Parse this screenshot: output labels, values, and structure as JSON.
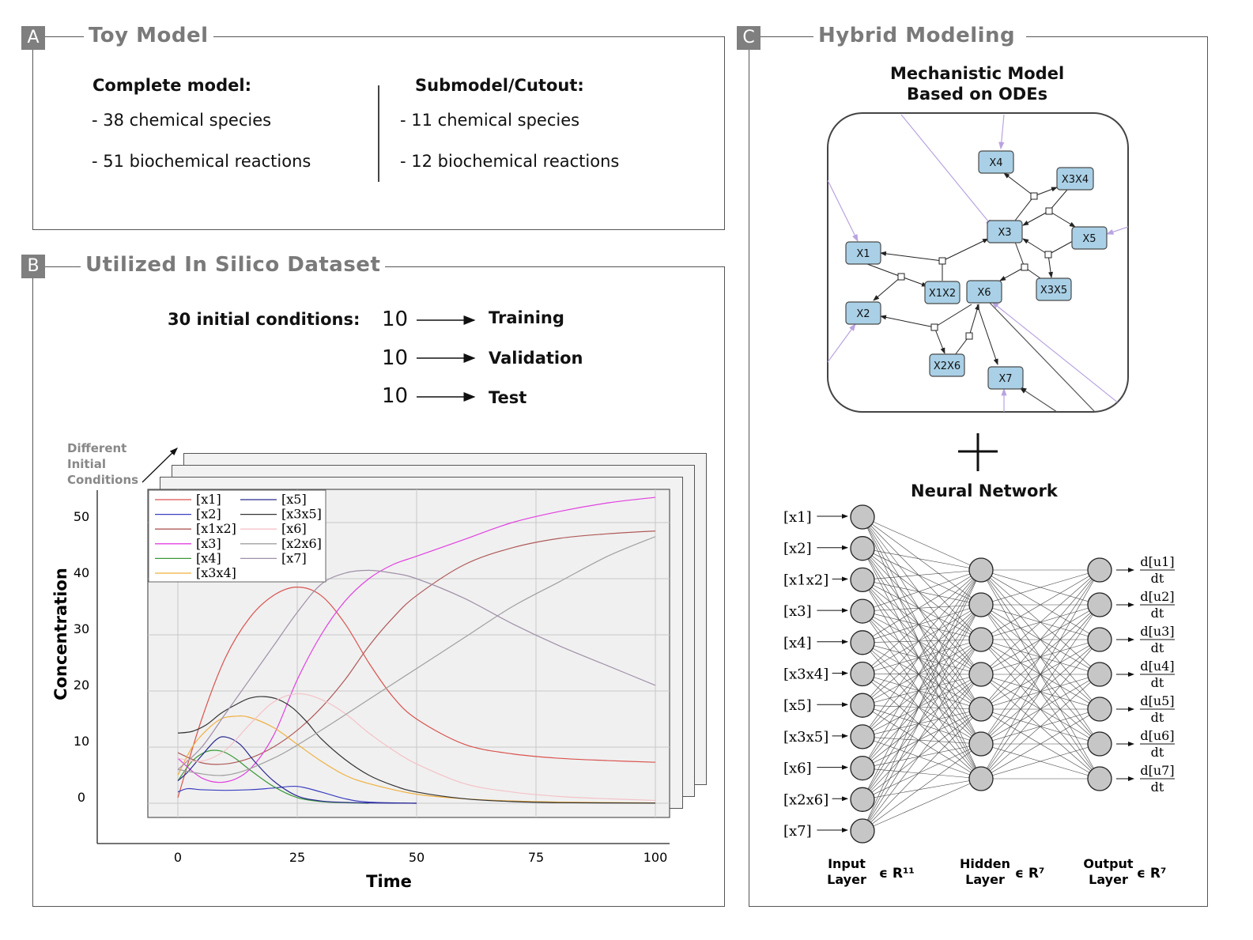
{
  "panel_a": {
    "tag": "A",
    "title": "Toy Model",
    "complete": {
      "heading": "Complete model:",
      "species": "- 38 chemical species",
      "reactions": "- 51 biochemical reactions"
    },
    "submodel": {
      "heading": "Submodel/Cutout:",
      "species": "- 11 chemical species",
      "reactions": "- 12 biochemical reactions"
    }
  },
  "panel_b": {
    "tag": "B",
    "title": "Utilized In Silico Dataset",
    "conditions_label": "30 initial conditions:",
    "splits": [
      {
        "count": "10",
        "label": "Training"
      },
      {
        "count": "10",
        "label": "Validation"
      },
      {
        "count": "10",
        "label": "Test"
      }
    ],
    "stack_label": [
      "Different",
      "Initial",
      "Conditions"
    ]
  },
  "chart_data": {
    "type": "line",
    "xlabel": "Time",
    "ylabel": "Concentration",
    "xlim": [
      0,
      100
    ],
    "ylim": [
      -7,
      56
    ],
    "xticks": [
      0,
      25,
      50,
      75,
      100
    ],
    "yticks": [
      0,
      10,
      20,
      30,
      40,
      50
    ],
    "grid": true,
    "legend_position": "top-left",
    "series": [
      {
        "name": "[x1]",
        "color": "#d9534f",
        "x": [
          0,
          5,
          10,
          15,
          20,
          25,
          30,
          35,
          40,
          45,
          50,
          60,
          70,
          80,
          90,
          100
        ],
        "y": [
          1,
          15,
          26,
          33,
          37,
          38.5,
          37,
          32,
          25,
          19,
          15,
          10.5,
          8.8,
          8,
          7.6,
          7.3
        ]
      },
      {
        "name": "[x2]",
        "color": "#3b3fbf",
        "x": [
          0,
          2,
          5,
          10,
          15,
          20,
          25,
          30,
          35,
          40,
          50
        ],
        "y": [
          2,
          2.6,
          2.4,
          2.3,
          2.4,
          2.7,
          3,
          2,
          0.8,
          0.2,
          0
        ]
      },
      {
        "name": "[x1x2]",
        "color": "#b05a5a",
        "x": [
          0,
          5,
          10,
          15,
          20,
          25,
          30,
          35,
          40,
          45,
          50,
          60,
          70,
          80,
          90,
          100
        ],
        "y": [
          9,
          7.2,
          7,
          8,
          10,
          13,
          17,
          22,
          28,
          33,
          37,
          42.5,
          45.5,
          47.2,
          48,
          48.5
        ]
      },
      {
        "name": "[x3]",
        "color": "#e040e0",
        "x": [
          0,
          5,
          10,
          15,
          20,
          25,
          30,
          35,
          40,
          45,
          50,
          60,
          70,
          80,
          90,
          100
        ],
        "y": [
          8,
          4.5,
          3.8,
          6,
          12,
          22,
          30,
          36,
          40,
          42.5,
          44,
          47,
          50,
          52,
          53.5,
          54.5
        ]
      },
      {
        "name": "[x4]",
        "color": "#3a9a3a",
        "x": [
          0,
          3,
          6,
          9,
          12,
          15,
          20,
          25,
          30,
          35,
          40
        ],
        "y": [
          4,
          7.5,
          9.2,
          9.3,
          8,
          6,
          3,
          1,
          0.3,
          0.1,
          0
        ]
      },
      {
        "name": "[x3x4]",
        "color": "#f0b040",
        "x": [
          0,
          3,
          6,
          9,
          12,
          15,
          20,
          25,
          30,
          35,
          40,
          50,
          60,
          70,
          80,
          100
        ],
        "y": [
          5,
          10,
          13,
          15,
          15.5,
          15.3,
          13.5,
          10.5,
          7.5,
          5,
          3.5,
          1.6,
          0.8,
          0.4,
          0.2,
          0.05
        ]
      },
      {
        "name": "[x5]",
        "color": "#2a2a90",
        "x": [
          0,
          2,
          5,
          8,
          10,
          13,
          16,
          20,
          25,
          30,
          35,
          40,
          50
        ],
        "y": [
          4,
          5.5,
          8.5,
          11.3,
          11.8,
          10.5,
          7.5,
          4,
          1.3,
          0.4,
          0.15,
          0.05,
          0
        ]
      },
      {
        "name": "[x3x5]",
        "color": "#333333",
        "x": [
          0,
          3,
          6,
          9,
          12,
          15,
          18,
          21,
          24,
          27,
          30,
          35,
          40,
          45,
          50,
          60,
          70,
          80,
          100
        ],
        "y": [
          12.5,
          12.8,
          14,
          16,
          17.5,
          18.7,
          19,
          18.5,
          17,
          14.5,
          11.5,
          7.8,
          5,
          3.2,
          2,
          0.8,
          0.3,
          0.1,
          0.02
        ]
      },
      {
        "name": "[x6]",
        "color": "#f4c2c8",
        "x": [
          0,
          5,
          10,
          15,
          20,
          25,
          30,
          35,
          40,
          45,
          50,
          60,
          70,
          80,
          90,
          100
        ],
        "y": [
          8,
          7.5,
          9.5,
          14,
          18,
          19.5,
          18.5,
          16,
          12.5,
          9.5,
          7,
          3.5,
          2,
          1.2,
          0.8,
          0.5
        ]
      },
      {
        "name": "[x2x6]",
        "color": "#a0a0a0",
        "x": [
          0,
          10,
          20,
          30,
          40,
          50,
          60,
          70,
          80,
          90,
          100
        ],
        "y": [
          6,
          5,
          8,
          13,
          18.5,
          24,
          29.5,
          35,
          39.5,
          44,
          47.5
        ]
      },
      {
        "name": "[x7]",
        "color": "#a090a8",
        "x": [
          0,
          5,
          10,
          15,
          20,
          25,
          30,
          35,
          40,
          45,
          50,
          60,
          70,
          80,
          90,
          100
        ],
        "y": [
          6,
          10,
          16,
          22,
          28,
          34,
          39,
          41,
          41.5,
          41,
          40,
          36.5,
          32,
          28,
          24.5,
          21
        ]
      }
    ]
  },
  "panel_c": {
    "tag": "C",
    "title": "Hybrid Modeling",
    "mech_title_1": "Mechanistic Model",
    "mech_title_2": "Based on ODEs",
    "nodes": [
      "X4",
      "X3X4",
      "X3",
      "X5",
      "X1",
      "X1X2",
      "X6",
      "X3X5",
      "X2",
      "X2X6",
      "X7"
    ],
    "plus": "+",
    "nn_title": "Neural Network",
    "inputs": [
      "[x1]",
      "[x2]",
      "[x1x2]",
      "[x3]",
      "[x4]",
      "[x3x4]",
      "[x5]",
      "[x3x5]",
      "[x6]",
      "[x2x6]",
      "[x7]"
    ],
    "outputs": [
      {
        "num": "d[u1]",
        "den": "dt"
      },
      {
        "num": "d[u2]",
        "den": "dt"
      },
      {
        "num": "d[u3]",
        "den": "dt"
      },
      {
        "num": "d[u4]",
        "den": "dt"
      },
      {
        "num": "d[u5]",
        "den": "dt"
      },
      {
        "num": "d[u6]",
        "den": "dt"
      },
      {
        "num": "d[u7]",
        "den": "dt"
      }
    ],
    "hidden_count": 7,
    "layer_labels": [
      {
        "line1": "Input",
        "line2": "Layer",
        "dim": "ϵ R¹¹"
      },
      {
        "line1": "Hidden",
        "line2": "Layer",
        "dim": "ϵ R⁷"
      },
      {
        "line1": "Output",
        "line2": "Layer",
        "dim": "ϵ R⁷"
      }
    ]
  }
}
